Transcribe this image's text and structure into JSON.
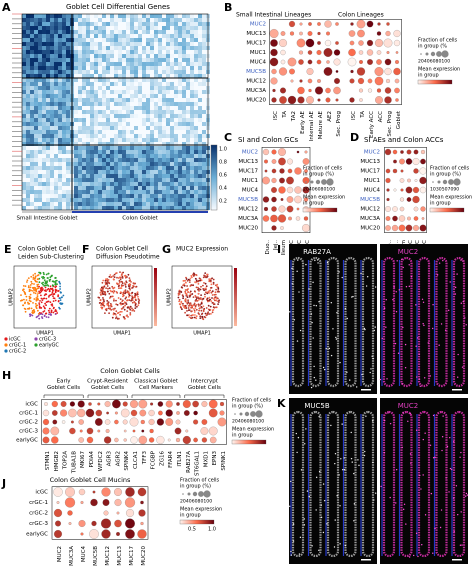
{
  "panels": {
    "A": {
      "label": "A",
      "title": "Goblet Cell Differential Genes",
      "colorbar_ticks": [
        "0.2",
        "0.4",
        "0.6",
        "0.8",
        "1.0"
      ],
      "groups": [
        "Small Intestine Goblet",
        "Colon Goblet"
      ]
    },
    "B": {
      "label": "B",
      "groups": [
        "Small Intestinal Lineages",
        "Colon Lineages"
      ],
      "genes": [
        "MUC2",
        "MUC13",
        "MUC17",
        "MUC1",
        "MUC4",
        "MUC5B",
        "MUC12",
        "MUC3A",
        "MUC20"
      ],
      "si_columns": [
        "ISC",
        "TA",
        "TA2",
        "Early AE",
        "Internal AE",
        "Mature AE",
        "AE2",
        "Sec. Prog"
      ],
      "colon_columns": [
        "ISC",
        "TA",
        "Early ACC",
        "ACC",
        "Sec. Prog",
        "Goblet"
      ],
      "legend": {
        "size_title": [
          "Fraction of cells",
          "in group (%"
        ],
        "size_ticks": "20406080100",
        "color_title": [
          "Mean expression",
          "in group"
        ]
      }
    },
    "C": {
      "label": "C",
      "title": "SI and Colon GCs",
      "genes": [
        "MUC2",
        "MUC13",
        "MUC17",
        "MUC1",
        "MUC4",
        "MUC5B",
        "MUC12",
        "MUC3A",
        "MUC20"
      ],
      "columns": [
        "Duo..",
        "Jej..",
        "Ileum",
        "AC",
        "TC",
        "DC"
      ],
      "legend": {
        "size_title": [
          "Fraction of cells",
          "in group (%)"
        ],
        "size_ticks": "20406080100",
        "color_title": [
          "Mean expression",
          "in group"
        ]
      }
    },
    "D": {
      "label": "D",
      "title": "SI AEs and Colon ACCs",
      "genes": [
        "MUC2",
        "MUC13",
        "MUC17",
        "MUC1",
        "MUC4",
        "MUC5B",
        "MUC12",
        "MUC3A",
        "MUC20"
      ],
      "columns": [
        "Duo..",
        "Jej..",
        "Ileum",
        "AC",
        "TC",
        "DC"
      ],
      "legend": {
        "size_title": [
          "Fraction of cells",
          "in group (%)"
        ],
        "size_ticks": "1030507090",
        "color_title": [
          "Mean expression",
          "in group"
        ]
      }
    },
    "highlight_color": "#3b5fc0",
    "highlighted_rows": [
      0,
      5
    ],
    "E": {
      "label": "E",
      "title": [
        "Colon Goblet Cell",
        "Leiden Sub-Clustering"
      ],
      "x_label": "UMAP1",
      "y_label": "UMAP2",
      "clusters": [
        {
          "name": "icGC",
          "color": "#e41a1c"
        },
        {
          "name": "crGC-3",
          "color": "#8e44ad"
        },
        {
          "name": "crGC-1",
          "color": "#ff7f0e"
        },
        {
          "name": "earlyGC",
          "color": "#2ca02c"
        },
        {
          "name": "crGC-2",
          "color": "#1f77b4"
        }
      ]
    },
    "F": {
      "label": "F",
      "title": [
        "Colon Goblet Cell",
        "Diffusion Pseudotime"
      ],
      "x_label": "UMAP1",
      "y_label": "UMAP2"
    },
    "G": {
      "label": "G",
      "title": [
        "MUC2 Expression"
      ],
      "x_label": "UMAP1",
      "y_label": "UMAP2"
    },
    "H": {
      "label": "H",
      "title": "Colon Goblet Cells",
      "groups": [
        [
          "Early",
          "Goblet Cells"
        ],
        [
          "Crypt-Resident",
          "Goblet Cells"
        ],
        [
          "Classical Goblet",
          "Cell Markers"
        ],
        [
          "Intercrypt",
          "Goblet Cells"
        ]
      ],
      "rows": [
        "icGC",
        "crGC-1",
        "crGC-2",
        "crGC-3",
        "earlyGC"
      ],
      "columns": [
        "STMN1",
        "HMGB2",
        "TOP2A",
        "TUBA1B",
        "MKI67",
        "PDIA4",
        "WFDC2",
        "AGR3",
        "AGR2",
        "SPINK4",
        "CLCA1",
        "TFF3",
        "FCGBP",
        "ZG16",
        "FFAR4",
        "ITLN1",
        "RAB27A",
        "ST6GAL1",
        "MXD1",
        "EPN3",
        "SPINK1"
      ],
      "legend": {
        "size_title": [
          "Fraction of cells",
          "in group (%)"
        ],
        "size_ticks": "20406080100",
        "color_title": [
          "Mean expression",
          "in group"
        ]
      }
    },
    "I": {
      "label": "I",
      "stains": [
        "RAB27A",
        "MUC2"
      ]
    },
    "J": {
      "label": "J",
      "title": "Colon Goblet Cell Mucins",
      "rows": [
        "icGC",
        "crGC-1",
        "crGC-2",
        "crGC-3",
        "earlyGC"
      ],
      "columns": [
        "MUC2",
        "MUC3A",
        "MUC4",
        "MUC5B",
        "MUC12",
        "MUC13",
        "MUC17",
        "MUC20"
      ],
      "legend": {
        "size_title": [
          "Fraction of cells",
          "in group (%)"
        ],
        "size_ticks": "20406080100",
        "color_title": [
          "Mean expression",
          "in group"
        ],
        "color_ticks": [
          "0.5",
          "1.0"
        ]
      }
    },
    "K": {
      "label": "K",
      "stains": [
        "MUC5B",
        "MUC2"
      ]
    }
  }
}
